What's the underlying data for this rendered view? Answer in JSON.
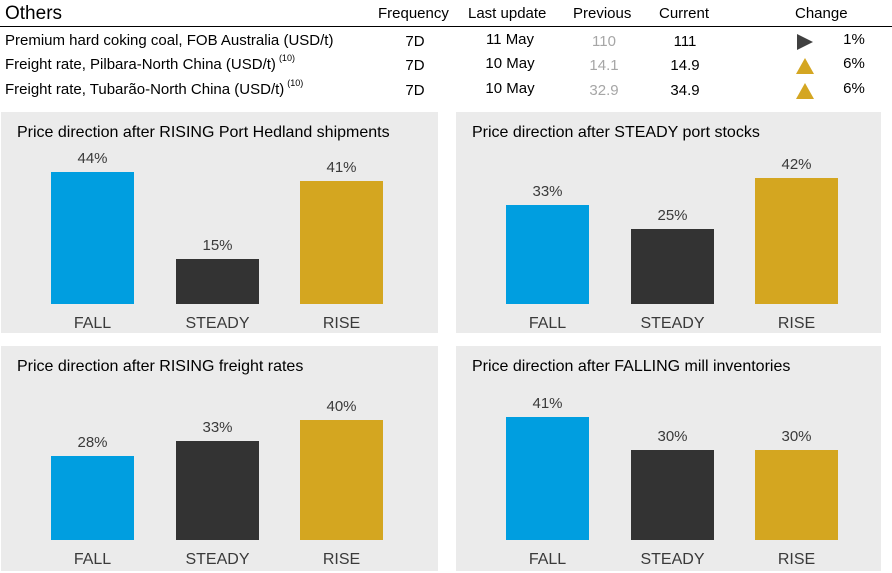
{
  "table": {
    "title": "Others",
    "columns": {
      "frequency": "Frequency",
      "last_update": "Last update",
      "previous": "Previous",
      "current": "Current",
      "change": "Change"
    },
    "rows": [
      {
        "name": "Premium hard coking coal, FOB Australia (USD/t)",
        "note": "",
        "frequency": "7D",
        "last_update": "11 May",
        "previous": "110",
        "current": "111",
        "indicator": "neutral",
        "change": "1%"
      },
      {
        "name": "Freight rate, Pilbara-North China (USD/t)",
        "note": "(10)",
        "frequency": "7D",
        "last_update": "10 May",
        "previous": "14.1",
        "current": "14.9",
        "indicator": "up",
        "change": "6%"
      },
      {
        "name": "Freight rate, Tubarão-North China (USD/t)",
        "note": "(10)",
        "frequency": "7D",
        "last_update": "10 May",
        "previous": "32.9",
        "current": "34.9",
        "indicator": "up",
        "change": "6%"
      }
    ]
  },
  "colors": {
    "fall": "#009ee0",
    "steady": "#333333",
    "rise": "#d4a620",
    "neutral_icon": "#404040",
    "up_icon": "#d4a622"
  },
  "chart_data": [
    {
      "type": "bar",
      "title": "Price direction after RISING Port Hedland shipments",
      "categories": [
        "FALL",
        "STEADY",
        "RISE"
      ],
      "values": [
        44,
        15,
        41
      ],
      "unit": "%",
      "ylim": [
        0,
        44
      ],
      "xlabel": "",
      "ylabel": ""
    },
    {
      "type": "bar",
      "title": "Price direction after STEADY port stocks",
      "categories": [
        "FALL",
        "STEADY",
        "RISE"
      ],
      "values": [
        33,
        25,
        42
      ],
      "unit": "%",
      "ylim": [
        0,
        44
      ],
      "xlabel": "",
      "ylabel": ""
    },
    {
      "type": "bar",
      "title": "Price direction after RISING freight rates",
      "categories": [
        "FALL",
        "STEADY",
        "RISE"
      ],
      "values": [
        28,
        33,
        40
      ],
      "unit": "%",
      "ylim": [
        0,
        44
      ],
      "xlabel": "",
      "ylabel": ""
    },
    {
      "type": "bar",
      "title": "Price direction after FALLING mill inventories",
      "categories": [
        "FALL",
        "STEADY",
        "RISE"
      ],
      "values": [
        41,
        30,
        30
      ],
      "unit": "%",
      "ylim": [
        0,
        44
      ],
      "xlabel": "",
      "ylabel": ""
    }
  ]
}
